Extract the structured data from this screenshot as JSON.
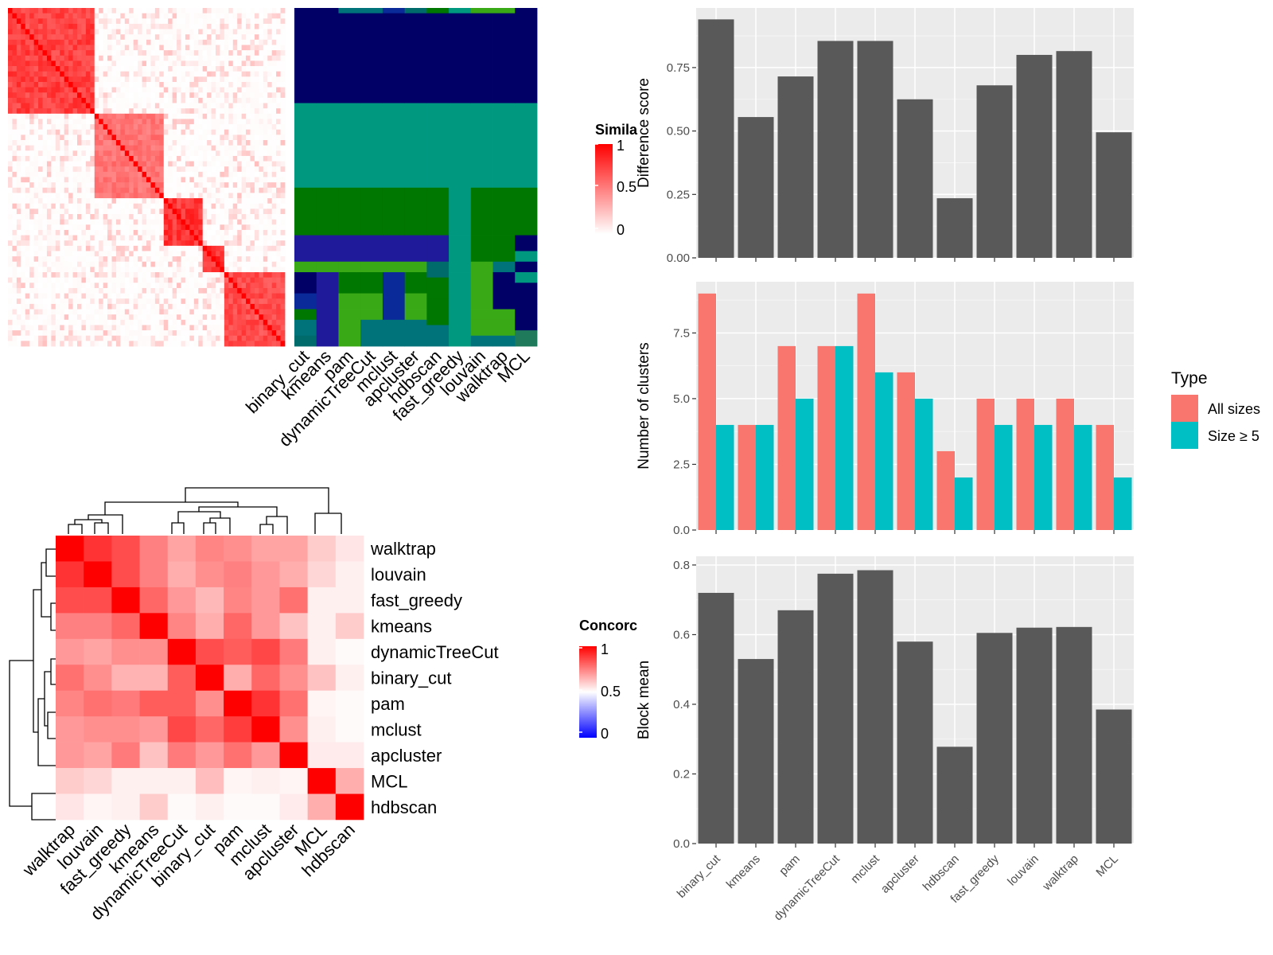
{
  "chart_data": [
    {
      "type": "heatmap",
      "panel": "similarity-matrix",
      "legend_title": "Simila",
      "legend_ticks": [
        "1",
        "0.5",
        "0"
      ],
      "colors": {
        "high": "#ff0000",
        "low": "#ffffff"
      },
      "blocks": [
        {
          "size": 20,
          "within": 0.85
        },
        {
          "size": 16,
          "within": 0.62
        },
        {
          "size": 9,
          "within": 0.9
        },
        {
          "size": 5,
          "within": 0.92
        },
        {
          "size": 14,
          "within": 0.8
        }
      ]
    },
    {
      "type": "heatmap",
      "panel": "cluster-assignments",
      "methods": [
        "binary_cut",
        "kmeans",
        "pam",
        "dynamicTreeCut",
        "mclust",
        "apcluster",
        "hdbscan",
        "fast_greedy",
        "louvain",
        "walktrap",
        "MCL"
      ],
      "palette": [
        "#000066",
        "#009980",
        "#007700",
        "#1f1a99",
        "#3aa916",
        "#00727a",
        "#0a2a9a",
        "#006b6b",
        "#1e7a5a"
      ]
    },
    {
      "type": "heatmap",
      "panel": "concordance",
      "legend_title": "Concorc",
      "legend_ticks": [
        "1",
        "0.5",
        "0"
      ],
      "colors": {
        "high": "#ff0000",
        "mid": "#ffffff",
        "low": "#0000ff"
      },
      "row_labels": [
        "walktrap",
        "louvain",
        "fast_greedy",
        "kmeans",
        "dynamicTreeCut",
        "binary_cut",
        "pam",
        "mclust",
        "apcluster",
        "MCL",
        "hdbscan"
      ],
      "col_labels": [
        "walktrap",
        "louvain",
        "fast_greedy",
        "kmeans",
        "dynamicTreeCut",
        "binary_cut",
        "pam",
        "mclust",
        "apcluster",
        "MCL",
        "hdbscan"
      ],
      "values": [
        [
          1.0,
          0.9,
          0.85,
          0.75,
          0.68,
          0.74,
          0.72,
          0.68,
          0.68,
          0.6,
          0.55
        ],
        [
          0.9,
          1.0,
          0.85,
          0.75,
          0.66,
          0.72,
          0.75,
          0.7,
          0.66,
          0.58,
          0.53
        ],
        [
          0.85,
          0.85,
          1.0,
          0.8,
          0.7,
          0.64,
          0.74,
          0.7,
          0.78,
          0.53,
          0.53
        ],
        [
          0.75,
          0.75,
          0.8,
          1.0,
          0.74,
          0.66,
          0.8,
          0.7,
          0.62,
          0.53,
          0.6
        ],
        [
          0.7,
          0.68,
          0.72,
          0.72,
          1.0,
          0.85,
          0.82,
          0.86,
          0.76,
          0.53,
          0.51
        ],
        [
          0.78,
          0.72,
          0.65,
          0.65,
          0.82,
          1.0,
          0.66,
          0.8,
          0.72,
          0.62,
          0.53
        ],
        [
          0.74,
          0.78,
          0.76,
          0.82,
          0.82,
          0.72,
          1.0,
          0.9,
          0.78,
          0.52,
          0.51
        ],
        [
          0.7,
          0.72,
          0.72,
          0.7,
          0.86,
          0.8,
          0.88,
          1.0,
          0.72,
          0.53,
          0.51
        ],
        [
          0.7,
          0.68,
          0.76,
          0.62,
          0.76,
          0.7,
          0.78,
          0.7,
          1.0,
          0.54,
          0.54
        ],
        [
          0.6,
          0.58,
          0.53,
          0.53,
          0.53,
          0.63,
          0.52,
          0.53,
          0.52,
          1.0,
          0.66
        ],
        [
          0.55,
          0.52,
          0.53,
          0.6,
          0.51,
          0.53,
          0.51,
          0.51,
          0.54,
          0.66,
          1.0
        ]
      ]
    },
    {
      "type": "bar",
      "panel": "difference-score",
      "categories": [
        "binary_cut",
        "kmeans",
        "pam",
        "dynamicTreeCut",
        "mclust",
        "apcluster",
        "hdbscan",
        "fast_greedy",
        "louvain",
        "walktrap",
        "MCL"
      ],
      "values": [
        0.94,
        0.555,
        0.715,
        0.855,
        0.855,
        0.625,
        0.235,
        0.68,
        0.8,
        0.815,
        0.495
      ],
      "ylabel": "Difference score",
      "ylim": [
        0,
        0.985
      ],
      "yticks": [
        0,
        0.25,
        0.5,
        0.75
      ],
      "ytick_labels": [
        "0.00",
        "0.25",
        "0.50",
        "0.75"
      ],
      "grid": true,
      "color": "#595959"
    },
    {
      "type": "bar",
      "panel": "number-of-clusters",
      "categories": [
        "binary_cut",
        "kmeans",
        "pam",
        "dynamicTreeCut",
        "mclust",
        "apcluster",
        "hdbscan",
        "fast_greedy",
        "louvain",
        "walktrap",
        "MCL"
      ],
      "series": [
        {
          "name": "All sizes",
          "values": [
            9,
            4,
            7,
            7,
            9,
            6,
            3,
            5,
            5,
            5,
            4
          ],
          "color": "#F8766D"
        },
        {
          "name": "Size ≥ 5",
          "values": [
            4,
            4,
            5,
            7,
            6,
            5,
            2,
            4,
            4,
            4,
            2
          ],
          "color": "#00BFC4"
        }
      ],
      "ylabel": "Number of clusters",
      "ylim": [
        0,
        9.45
      ],
      "yticks": [
        0,
        2.5,
        5,
        7.5
      ],
      "ytick_labels": [
        "0.0",
        "2.5",
        "5.0",
        "7.5"
      ],
      "legend_title": "Type",
      "legend_position": "right",
      "grid": true
    },
    {
      "type": "bar",
      "panel": "block-mean",
      "categories": [
        "binary_cut",
        "kmeans",
        "pam",
        "dynamicTreeCut",
        "mclust",
        "apcluster",
        "hdbscan",
        "fast_greedy",
        "louvain",
        "walktrap",
        "MCL"
      ],
      "values": [
        0.72,
        0.53,
        0.67,
        0.775,
        0.785,
        0.58,
        0.278,
        0.605,
        0.62,
        0.622,
        0.385
      ],
      "ylabel": "Block mean",
      "ylim": [
        0,
        0.825
      ],
      "yticks": [
        0,
        0.2,
        0.4,
        0.6,
        0.8
      ],
      "ytick_labels": [
        "0.0",
        "0.2",
        "0.4",
        "0.6",
        "0.8"
      ],
      "grid": true,
      "color": "#595959"
    }
  ]
}
